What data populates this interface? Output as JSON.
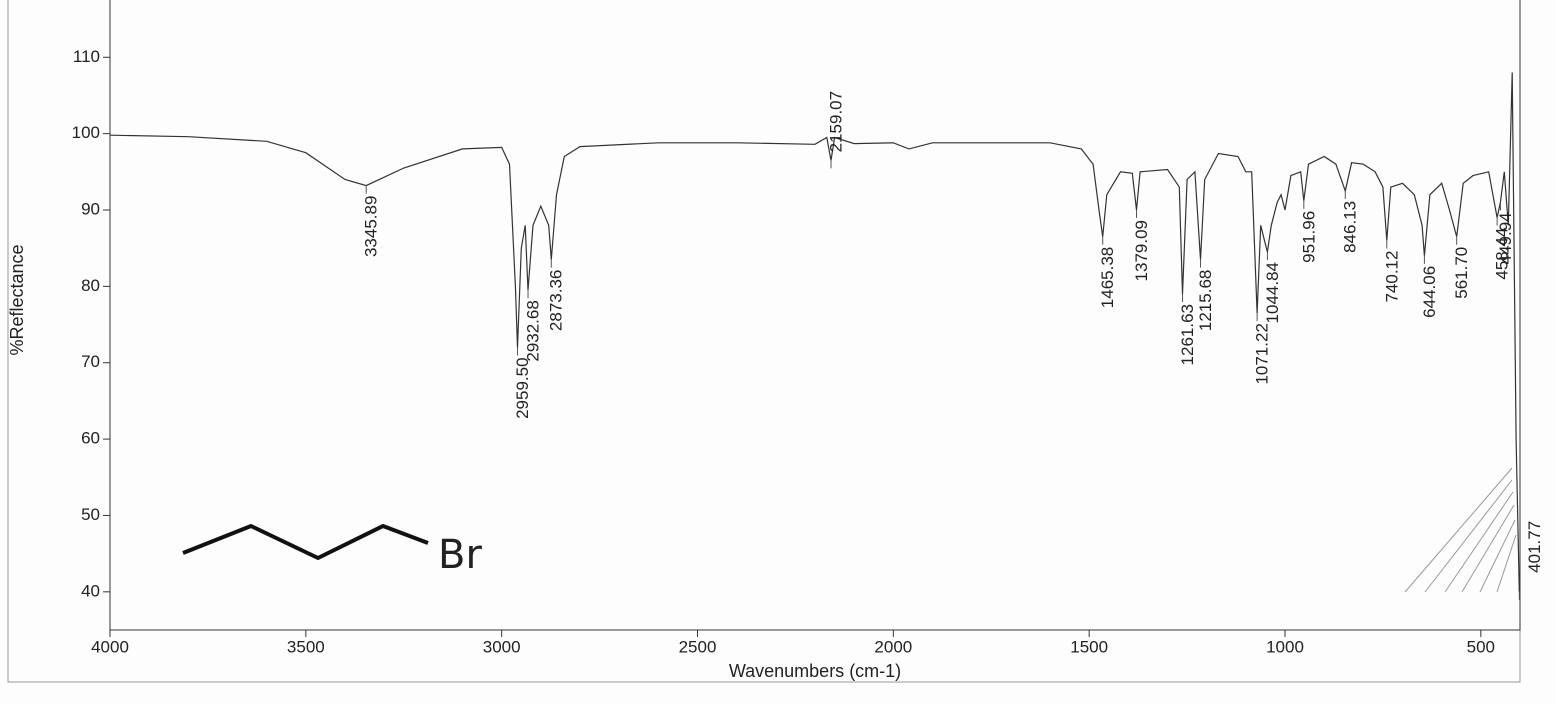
{
  "chart_data": {
    "type": "line",
    "xlabel": "Wavenumbers (cm-1)",
    "ylabel": "%Reflectance",
    "xlim": [
      4000,
      400
    ],
    "ylim": [
      35,
      117.5
    ],
    "xticks": [
      4000,
      3500,
      3000,
      2500,
      2000,
      1500,
      1000,
      500
    ],
    "yticks": [
      40,
      50,
      60,
      70,
      80,
      90,
      100,
      110
    ],
    "color": "#333333",
    "x": [
      4000,
      3800,
      3600,
      3500,
      3400,
      3345.89,
      3250,
      3100,
      3000,
      2980,
      2965,
      2959.5,
      2950,
      2940,
      2932.68,
      2920,
      2900,
      2880,
      2873.36,
      2860,
      2840,
      2800,
      2600,
      2400,
      2200,
      2170,
      2159.07,
      2150,
      2100,
      2000,
      1960,
      1900,
      1600,
      1520,
      1490,
      1475,
      1465.38,
      1455,
      1420,
      1390,
      1379.09,
      1370,
      1300,
      1270,
      1261.63,
      1250,
      1230,
      1215.68,
      1205,
      1170,
      1120,
      1100,
      1085,
      1071.22,
      1062,
      1055,
      1044.84,
      1035,
      1020,
      1010,
      1000,
      985,
      960,
      951.96,
      940,
      900,
      870,
      846.13,
      830,
      800,
      770,
      750,
      740.12,
      730,
      700,
      670,
      650,
      644.06,
      630,
      600,
      580,
      561.7,
      545,
      520,
      480,
      458.44,
      449.94,
      440,
      430,
      420,
      410,
      401.77
    ],
    "values": [
      99.8,
      99.6,
      99,
      97.5,
      94,
      93.2,
      95.5,
      98,
      98.2,
      96,
      80,
      72,
      85,
      88,
      79.5,
      88,
      90.5,
      88,
      83.5,
      92,
      97,
      98.3,
      98.8,
      98.8,
      98.6,
      99.5,
      96.5,
      99.5,
      98.7,
      98.8,
      98,
      98.8,
      98.8,
      98,
      96,
      90,
      86.5,
      92,
      95,
      94.8,
      90,
      95,
      95.3,
      93,
      79,
      94,
      95,
      83.5,
      94,
      97.4,
      97,
      95,
      95,
      76.5,
      88,
      86.5,
      84.5,
      88,
      91,
      92,
      90,
      94.5,
      95,
      91.2,
      96,
      97,
      96,
      92.5,
      96.2,
      96,
      95,
      93,
      86,
      93,
      93.5,
      92,
      88,
      84,
      92,
      93.5,
      90,
      86.5,
      93.5,
      94.5,
      95,
      89,
      91,
      95,
      88,
      108,
      60,
      40
    ],
    "annotations": [
      {
        "text": "3345.89",
        "x": 3345.89,
        "y": 93.2
      },
      {
        "text": "2959.50",
        "x": 2959.5,
        "y": 72
      },
      {
        "text": "2932.68",
        "x": 2932.68,
        "y": 79.5
      },
      {
        "text": "2873.36",
        "x": 2873.36,
        "y": 83.5
      },
      {
        "text": "2159.07",
        "x": 2159.07,
        "y": 96.5
      },
      {
        "text": "1465.38",
        "x": 1465.38,
        "y": 86.5
      },
      {
        "text": "1379.09",
        "x": 1379.09,
        "y": 90
      },
      {
        "text": "1261.63",
        "x": 1261.63,
        "y": 79
      },
      {
        "text": "1215.68",
        "x": 1215.68,
        "y": 83.5
      },
      {
        "text": "1071.22",
        "x": 1071.22,
        "y": 76.5
      },
      {
        "text": "1044.84",
        "x": 1044.84,
        "y": 84.5
      },
      {
        "text": "951.96",
        "x": 951.96,
        "y": 91.2
      },
      {
        "text": "846.13",
        "x": 846.13,
        "y": 92.5
      },
      {
        "text": "740.12",
        "x": 740.12,
        "y": 86
      },
      {
        "text": "644.06",
        "x": 644.06,
        "y": 84
      },
      {
        "text": "561.70",
        "x": 561.7,
        "y": 86.5
      },
      {
        "text": "458.44",
        "x": 458.44,
        "y": 89
      },
      {
        "text": "449.94",
        "x": 449.94,
        "y": 91
      },
      {
        "text": "401.77",
        "x": 401.77,
        "y": 40
      }
    ],
    "structure_label": "Br"
  }
}
